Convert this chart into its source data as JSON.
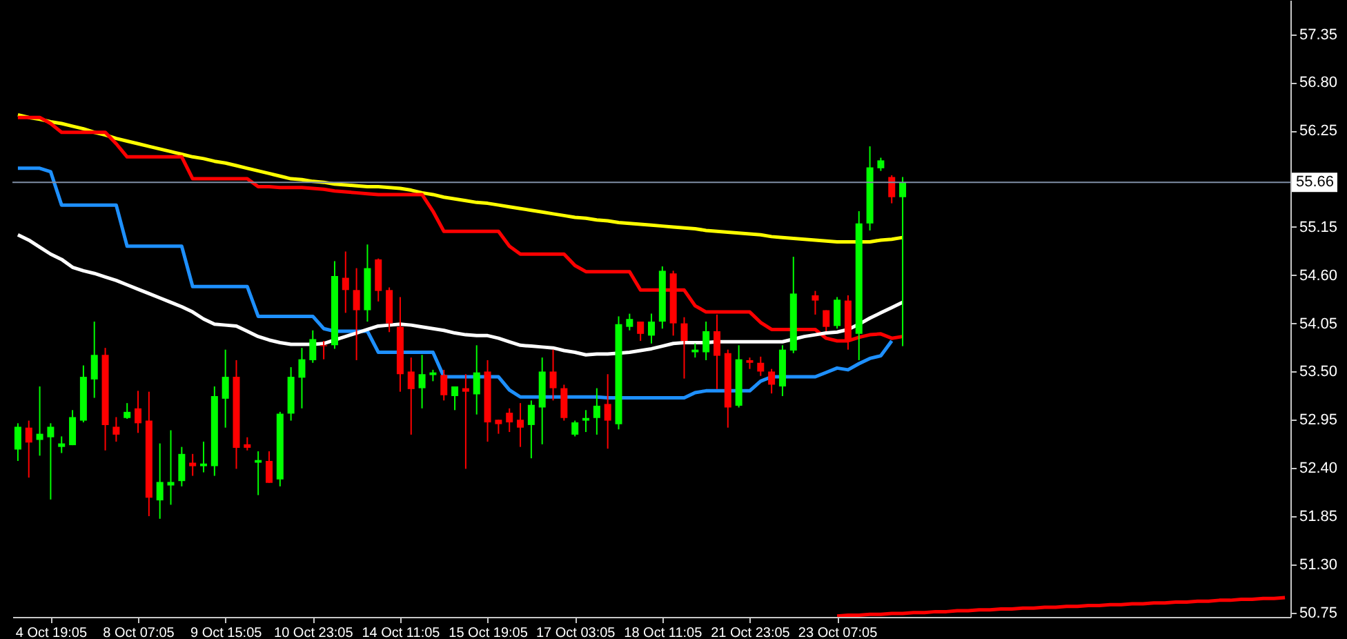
{
  "chart_data": {
    "type": "candlestick",
    "categories": [
      null,
      null,
      null,
      "4 Oct 19:05",
      null,
      null,
      null,
      null,
      null,
      null,
      null,
      "8 Oct 07:05",
      null,
      null,
      null,
      null,
      null,
      null,
      null,
      "9 Oct 15:05",
      null,
      null,
      null,
      null,
      null,
      null,
      null,
      "10 Oct 23:05",
      null,
      null,
      null,
      null,
      null,
      null,
      null,
      "14 Oct 11:05",
      null,
      null,
      null,
      null,
      null,
      null,
      null,
      "15 Oct 19:05",
      null,
      null,
      null,
      null,
      null,
      null,
      null,
      "17 Oct 03:05",
      null,
      null,
      null,
      null,
      null,
      null,
      null,
      "18 Oct 11:05",
      null,
      null,
      null,
      null,
      null,
      null,
      null,
      "21 Oct 23:05",
      null,
      null,
      null,
      null,
      null,
      null,
      null,
      "23 Oct 07:05",
      null,
      null,
      null,
      null,
      null,
      null,
      null,
      null,
      null,
      null,
      null,
      null,
      null,
      null,
      null,
      null,
      null,
      null,
      null,
      null,
      null,
      null,
      null,
      null,
      null,
      null,
      null,
      null,
      null,
      null,
      null,
      null,
      null,
      null,
      null,
      null,
      null,
      null,
      null,
      null,
      null
    ],
    "ohlc": [
      [
        52.61,
        52.91,
        52.48,
        52.87
      ],
      [
        52.86,
        52.94,
        52.29,
        52.69
      ],
      [
        52.72,
        53.33,
        52.54,
        52.79
      ],
      [
        52.75,
        52.91,
        52.04,
        52.87
      ],
      [
        52.64,
        52.76,
        52.57,
        52.68
      ],
      [
        52.66,
        53.06,
        52.66,
        52.98
      ],
      [
        52.94,
        53.57,
        52.92,
        53.44
      ],
      [
        53.41,
        54.07,
        53.2,
        53.69
      ],
      [
        53.69,
        53.77,
        52.6,
        52.89
      ],
      [
        52.87,
        52.98,
        52.7,
        52.78
      ],
      [
        52.97,
        53.14,
        52.96,
        53.04
      ],
      [
        53.08,
        53.28,
        52.8,
        52.91
      ],
      [
        52.94,
        53.27,
        51.85,
        52.06
      ],
      [
        52.03,
        52.68,
        51.82,
        52.24
      ],
      [
        52.2,
        52.83,
        51.98,
        52.24
      ],
      [
        52.25,
        52.64,
        52.19,
        52.56
      ],
      [
        52.46,
        52.56,
        52.31,
        52.42
      ],
      [
        52.42,
        52.7,
        52.35,
        52.45
      ],
      [
        52.42,
        53.33,
        52.31,
        53.22
      ],
      [
        53.19,
        53.75,
        52.86,
        53.44
      ],
      [
        53.44,
        53.63,
        52.39,
        52.63
      ],
      [
        52.67,
        52.75,
        52.6,
        52.63
      ],
      [
        52.46,
        52.59,
        52.09,
        52.49
      ],
      [
        52.48,
        52.59,
        52.23,
        52.23
      ],
      [
        52.27,
        53.04,
        52.19,
        53.02
      ],
      [
        53.02,
        53.55,
        52.94,
        53.44
      ],
      [
        53.43,
        53.77,
        53.08,
        53.64
      ],
      [
        53.63,
        53.97,
        53.6,
        53.87
      ],
      [
        53.8,
        53.85,
        53.64,
        53.79
      ],
      [
        53.8,
        54.76,
        53.76,
        54.59
      ],
      [
        54.57,
        54.87,
        54.17,
        54.43
      ],
      [
        54.43,
        54.68,
        53.63,
        54.2
      ],
      [
        54.2,
        54.95,
        54.07,
        54.68
      ],
      [
        54.78,
        54.79,
        54.3,
        54.42
      ],
      [
        54.43,
        54.46,
        53.95,
        54.05
      ],
      [
        54.01,
        54.35,
        53.27,
        53.47
      ],
      [
        53.5,
        53.66,
        52.78,
        53.3
      ],
      [
        53.31,
        53.69,
        53.08,
        53.47
      ],
      [
        53.46,
        53.52,
        53.39,
        53.49
      ],
      [
        53.46,
        53.52,
        53.17,
        53.23
      ],
      [
        53.22,
        53.33,
        53.06,
        53.33
      ],
      [
        53.31,
        53.47,
        52.39,
        53.27
      ],
      [
        53.24,
        53.8,
        53.01,
        53.49
      ],
      [
        53.5,
        53.63,
        52.7,
        52.92
      ],
      [
        52.95,
        52.95,
        52.79,
        52.9
      ],
      [
        53.03,
        53.08,
        52.81,
        52.92
      ],
      [
        52.95,
        53.14,
        52.64,
        52.86
      ],
      [
        52.89,
        53.17,
        52.51,
        53.12
      ],
      [
        53.09,
        53.66,
        52.67,
        53.5
      ],
      [
        53.5,
        53.75,
        53.17,
        53.31
      ],
      [
        53.31,
        53.35,
        52.94,
        52.97
      ],
      [
        52.78,
        52.94,
        52.76,
        52.92
      ],
      [
        52.94,
        53.06,
        52.81,
        52.97
      ],
      [
        52.97,
        53.31,
        52.78,
        53.11
      ],
      [
        53.13,
        53.47,
        52.62,
        52.94
      ],
      [
        52.9,
        54.13,
        52.84,
        54.04
      ],
      [
        54.01,
        54.16,
        53.97,
        54.1
      ],
      [
        54.07,
        54.07,
        53.85,
        53.93
      ],
      [
        53.91,
        54.16,
        53.82,
        54.07
      ],
      [
        54.07,
        54.7,
        53.99,
        54.65
      ],
      [
        54.62,
        54.65,
        53.91,
        54.05
      ],
      [
        54.05,
        54.12,
        53.42,
        53.85
      ],
      [
        53.72,
        53.82,
        53.66,
        53.75
      ],
      [
        53.72,
        54.07,
        53.63,
        53.96
      ],
      [
        53.96,
        54.15,
        53.3,
        53.68
      ],
      [
        53.71,
        53.75,
        52.86,
        53.09
      ],
      [
        53.11,
        53.8,
        53.09,
        53.64
      ],
      [
        53.63,
        53.66,
        53.53,
        53.6
      ],
      [
        53.6,
        53.67,
        53.45,
        53.5
      ],
      [
        53.5,
        53.53,
        53.25,
        53.35
      ],
      [
        53.33,
        53.8,
        53.22,
        53.75
      ],
      [
        53.74,
        54.81,
        53.71,
        54.39
      ],
      null,
      [
        54.37,
        54.42,
        54.15,
        54.31
      ],
      [
        54.2,
        54.2,
        53.96,
        54.01
      ],
      [
        54.02,
        54.35,
        53.99,
        54.32
      ],
      [
        54.31,
        54.37,
        53.75,
        53.85
      ],
      [
        53.93,
        55.33,
        53.63,
        55.19
      ],
      [
        55.19,
        56.07,
        55.11,
        55.83
      ],
      [
        55.82,
        55.94,
        55.79,
        55.91
      ],
      [
        55.72,
        55.74,
        55.42,
        55.49
      ],
      [
        55.49,
        55.72,
        53.79,
        55.66
      ],
      null,
      null,
      null,
      null,
      null,
      null,
      null,
      null,
      null,
      null,
      null,
      null,
      null,
      null,
      null,
      null,
      null,
      null,
      null,
      null,
      null,
      null,
      null,
      null,
      null,
      null,
      null,
      null,
      null,
      null,
      null,
      null,
      null,
      null,
      null
    ],
    "colors": [
      "#00ff00",
      "#ff0000",
      "#00ff00",
      "#00ff00",
      "#00ff00",
      "#00ff00",
      "#00ff00",
      "#00ff00",
      "#ff0000",
      "#ff0000",
      "#00ff00",
      "#ff0000",
      "#ff0000",
      "#00ff00",
      "#00ff00",
      "#00ff00",
      "#ff0000",
      "#00ff00",
      "#00ff00",
      "#00ff00",
      "#ff0000",
      "#ff0000",
      "#00ff00",
      "#ff0000",
      "#00ff00",
      "#00ff00",
      "#00ff00",
      "#00ff00",
      "#ff0000",
      "#00ff00",
      "#ff0000",
      "#ff0000",
      "#00ff00",
      "#ff0000",
      "#ff0000",
      "#ff0000",
      "#ff0000",
      "#00ff00",
      "#00ff00",
      "#ff0000",
      "#00ff00",
      "#ff0000",
      "#00ff00",
      "#ff0000",
      "#ff0000",
      "#ff0000",
      "#ff0000",
      "#00ff00",
      "#00ff00",
      "#ff0000",
      "#ff0000",
      "#00ff00",
      "#00ff00",
      "#00ff00",
      "#ff0000",
      "#00ff00",
      "#00ff00",
      "#ff0000",
      "#00ff00",
      "#00ff00",
      "#ff0000",
      "#ff0000",
      "#00ff00",
      "#00ff00",
      "#ff0000",
      "#ff0000",
      "#00ff00",
      "#ff0000",
      "#ff0000",
      "#ff0000",
      "#00ff00",
      "#00ff00",
      null,
      "#ff0000",
      "#ff0000",
      "#00ff00",
      "#ff0000",
      "#00ff00",
      "#00ff00",
      "#00ff00",
      "#ff0000",
      "#00ff00",
      null,
      null,
      null,
      null,
      null,
      null,
      null,
      null,
      null,
      null,
      null,
      null,
      null,
      null,
      null,
      null,
      null,
      null,
      null,
      null,
      null,
      null,
      null,
      null,
      null,
      null,
      null,
      null,
      null,
      null,
      null,
      null,
      null,
      null,
      null
    ],
    "series": [
      {
        "type": "line",
        "color": "#ffff00",
        "values": [
          56.43,
          56.4,
          56.38,
          56.35,
          56.33,
          56.3,
          56.27,
          56.23,
          56.2,
          56.16,
          56.13,
          56.1,
          56.07,
          56.04,
          56.01,
          55.98,
          55.95,
          55.93,
          55.9,
          55.88,
          55.85,
          55.82,
          55.79,
          55.76,
          55.73,
          55.7,
          55.69,
          55.67,
          55.66,
          55.64,
          55.63,
          55.62,
          55.61,
          55.61,
          55.6,
          55.59,
          55.57,
          55.54,
          55.52,
          55.49,
          55.47,
          55.45,
          55.43,
          55.42,
          55.4,
          55.38,
          55.36,
          55.34,
          55.32,
          55.3,
          55.28,
          55.26,
          55.25,
          55.23,
          55.22,
          55.2,
          55.19,
          55.18,
          55.17,
          55.16,
          55.15,
          55.14,
          55.13,
          55.11,
          55.1,
          55.09,
          55.08,
          55.07,
          55.06,
          55.04,
          55.03,
          55.02,
          55.01,
          55.0,
          54.99,
          54.98,
          54.98,
          54.98,
          54.98,
          55.0,
          55.01,
          55.03,
          null,
          null,
          null,
          null,
          null,
          null,
          null,
          null,
          null,
          null,
          null,
          null,
          null,
          null,
          null,
          null,
          null,
          null,
          null,
          null,
          null,
          null,
          null,
          null,
          null,
          null,
          null,
          null,
          null,
          null,
          null,
          null,
          null,
          null,
          null
        ]
      },
      {
        "type": "line",
        "color": "#ff0000",
        "values": [
          56.4,
          56.4,
          56.4,
          56.33,
          56.23,
          56.23,
          56.23,
          56.23,
          56.23,
          56.1,
          55.95,
          55.95,
          55.95,
          55.95,
          55.95,
          55.95,
          55.7,
          55.7,
          55.7,
          55.7,
          55.7,
          55.7,
          55.61,
          55.61,
          55.6,
          55.6,
          55.6,
          55.59,
          55.58,
          55.56,
          55.55,
          55.54,
          55.53,
          55.52,
          55.52,
          55.52,
          55.52,
          55.52,
          55.33,
          55.1,
          55.1,
          55.1,
          55.1,
          55.1,
          55.1,
          54.93,
          54.84,
          54.84,
          54.84,
          54.84,
          54.84,
          54.71,
          54.64,
          54.64,
          54.64,
          54.64,
          54.64,
          54.43,
          54.43,
          54.43,
          54.43,
          54.43,
          54.25,
          54.18,
          54.18,
          54.18,
          54.18,
          54.18,
          54.06,
          53.98,
          53.98,
          53.98,
          53.98,
          53.98,
          53.88,
          53.85,
          53.85,
          53.89,
          53.92,
          53.93,
          53.88,
          53.9,
          null,
          null,
          null,
          null,
          null,
          null,
          null,
          null,
          null,
          null,
          null,
          null,
          null,
          null,
          null,
          null,
          null,
          null,
          null,
          null,
          null,
          null,
          null,
          null,
          null,
          null,
          null,
          null,
          null,
          null,
          null,
          null,
          null,
          null,
          null
        ]
      },
      {
        "type": "line",
        "color": "#1e90ff",
        "values": [
          55.82,
          55.82,
          55.82,
          55.78,
          55.4,
          55.4,
          55.4,
          55.4,
          55.4,
          55.4,
          54.93,
          54.93,
          54.93,
          54.93,
          54.93,
          54.93,
          54.47,
          54.47,
          54.47,
          54.47,
          54.47,
          54.47,
          54.13,
          54.13,
          54.13,
          54.13,
          54.13,
          54.13,
          53.99,
          53.96,
          53.96,
          53.96,
          53.96,
          53.72,
          53.72,
          53.72,
          53.72,
          53.72,
          53.72,
          53.44,
          53.44,
          53.44,
          53.44,
          53.44,
          53.44,
          53.29,
          53.21,
          53.21,
          53.21,
          53.21,
          53.21,
          53.21,
          53.21,
          53.21,
          53.2,
          53.2,
          53.2,
          53.2,
          53.2,
          53.2,
          53.2,
          53.2,
          53.26,
          53.28,
          53.28,
          53.28,
          53.28,
          53.28,
          53.39,
          53.44,
          53.44,
          53.44,
          53.44,
          53.44,
          53.49,
          53.54,
          53.52,
          53.59,
          53.65,
          53.68,
          53.85,
          null,
          null,
          null,
          null,
          null,
          null,
          null,
          null,
          null,
          null,
          null,
          null,
          null,
          null,
          null,
          null,
          null,
          null,
          null,
          null,
          null,
          null,
          null,
          null,
          null,
          null,
          null,
          null,
          null,
          null,
          null,
          null,
          null,
          null,
          null,
          null
        ]
      },
      {
        "type": "line",
        "color": "#ffffff",
        "values": [
          55.06,
          55.0,
          54.92,
          54.84,
          54.78,
          54.69,
          54.65,
          54.62,
          54.58,
          54.54,
          54.49,
          54.44,
          54.39,
          54.34,
          54.29,
          54.24,
          54.18,
          54.1,
          54.04,
          54.03,
          54.02,
          53.96,
          53.9,
          53.86,
          53.83,
          53.81,
          53.81,
          53.81,
          53.82,
          53.86,
          53.9,
          53.94,
          53.98,
          54.02,
          54.03,
          54.04,
          54.03,
          54.01,
          53.99,
          53.97,
          53.94,
          53.92,
          53.91,
          53.91,
          53.88,
          53.84,
          53.8,
          53.79,
          53.78,
          53.77,
          53.74,
          53.72,
          53.69,
          53.7,
          53.7,
          53.71,
          53.72,
          53.74,
          53.76,
          53.79,
          53.82,
          53.83,
          53.83,
          53.83,
          53.84,
          53.84,
          53.84,
          53.84,
          53.84,
          53.84,
          53.84,
          53.87,
          53.9,
          53.92,
          53.94,
          53.95,
          53.98,
          54.04,
          54.11,
          54.17,
          54.23,
          54.29,
          null,
          null,
          null,
          null,
          null,
          null,
          null,
          null,
          null,
          null,
          null,
          null,
          null,
          null,
          null,
          null,
          null,
          null,
          null,
          null,
          null,
          null,
          null,
          null,
          null,
          null,
          null,
          null,
          null,
          null,
          null,
          null,
          null,
          null,
          null
        ]
      },
      {
        "type": "line",
        "color": "#ff0000",
        "values": [
          null,
          null,
          null,
          null,
          null,
          null,
          null,
          null,
          null,
          null,
          null,
          null,
          null,
          null,
          null,
          null,
          null,
          null,
          null,
          null,
          null,
          null,
          null,
          null,
          null,
          null,
          null,
          null,
          null,
          null,
          null,
          null,
          null,
          null,
          null,
          null,
          null,
          null,
          null,
          null,
          null,
          null,
          null,
          null,
          null,
          null,
          null,
          null,
          null,
          null,
          null,
          null,
          null,
          null,
          null,
          null,
          null,
          null,
          null,
          null,
          null,
          null,
          null,
          null,
          null,
          null,
          null,
          null,
          null,
          null,
          null,
          null,
          null,
          null,
          null,
          50.71,
          50.72,
          50.72,
          50.73,
          50.73,
          50.74,
          50.74,
          50.75,
          50.75,
          50.76,
          50.76,
          50.77,
          50.77,
          50.78,
          50.78,
          50.79,
          50.79,
          50.8,
          50.8,
          50.81,
          50.81,
          50.82,
          50.82,
          50.83,
          50.83,
          50.84,
          50.84,
          50.85,
          50.85,
          50.86,
          50.86,
          50.87,
          50.87,
          50.88,
          50.88,
          50.89,
          50.89,
          50.9,
          50.9,
          50.91,
          50.91,
          50.92
        ]
      }
    ],
    "ylim": [
      50.7,
      57.74
    ],
    "yticks": [
      57.35,
      {
        "value": 56.8,
        "label": "56.80"
      },
      56.25,
      55.15,
      {
        "value": 54.6,
        "label": "54.60"
      },
      54.05,
      {
        "value": 53.5,
        "label": "53.50"
      },
      52.95,
      {
        "value": 52.4,
        "label": "52.40"
      },
      51.85,
      {
        "value": 51.3,
        "label": "51.30"
      },
      50.75
    ],
    "ref_lines": [
      {
        "axis": "y",
        "value": 55.66,
        "label": "55.66",
        "color": "#7f8fa6"
      }
    ]
  }
}
